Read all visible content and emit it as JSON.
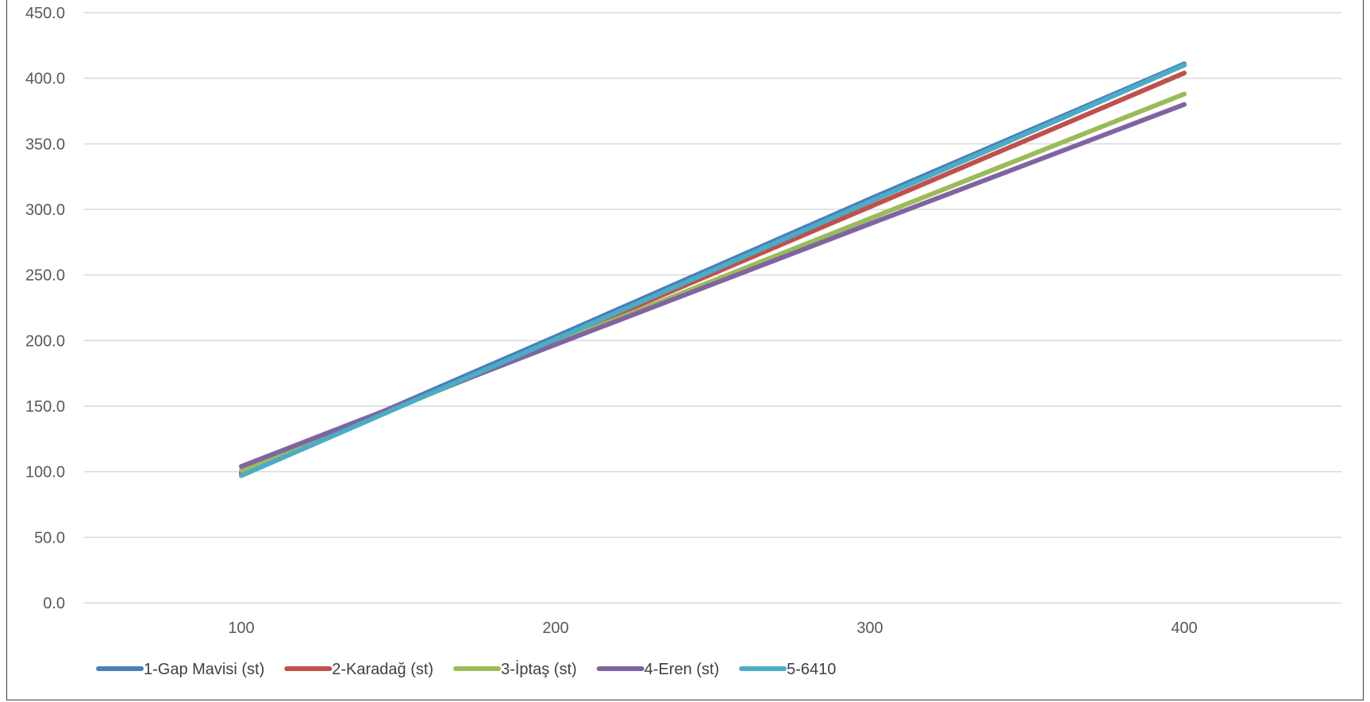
{
  "chart_data": {
    "type": "line",
    "title": "",
    "xlabel": "",
    "ylabel": "",
    "x": [
      100,
      200,
      300,
      400
    ],
    "x_tick_labels": [
      "100",
      "200",
      "300",
      "400"
    ],
    "xlim": [
      50,
      450
    ],
    "ylim": [
      0,
      450
    ],
    "y_tick_labels": [
      "0.0",
      "50.0",
      "100.0",
      "150.0",
      "200.0",
      "250.0",
      "300.0",
      "350.0",
      "400.0",
      "450.0"
    ],
    "grid": "horizontal",
    "legend_position": "bottom",
    "series": [
      {
        "name": "1-Gap Mavisi (st)",
        "color": "#4a7ebb",
        "values": [
          99,
          203,
          308,
          411
        ]
      },
      {
        "name": "2-Karadağ (st)",
        "color": "#c0504d",
        "values": [
          99,
          200,
          302,
          404
        ]
      },
      {
        "name": "3-İptaş (st)",
        "color": "#9bbb59",
        "values": [
          101,
          198,
          293,
          388
        ]
      },
      {
        "name": "4-Eren (st)",
        "color": "#8064a2",
        "values": [
          104,
          197,
          289,
          380
        ]
      },
      {
        "name": "5-6410",
        "color": "#4bacc6",
        "values": [
          97,
          201,
          306,
          410
        ]
      }
    ]
  }
}
